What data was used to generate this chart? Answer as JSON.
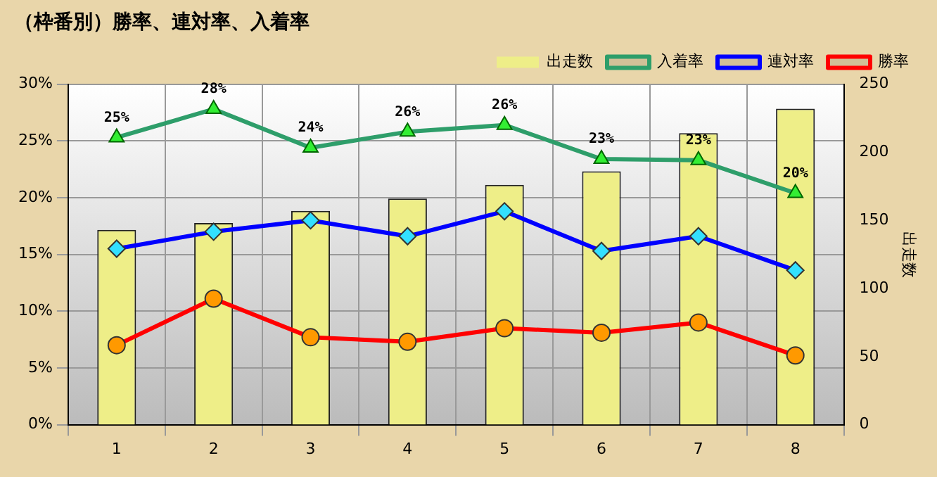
{
  "chart_data": {
    "type": "bar",
    "title": "（枠番別）勝率、連対率、入着率",
    "categories": [
      "1",
      "2",
      "3",
      "4",
      "5",
      "6",
      "7",
      "8"
    ],
    "series": [
      {
        "name": "出走数",
        "axis": "y2",
        "color": "#eeee88",
        "values": [
          143,
          148,
          157,
          166,
          176,
          186,
          214,
          232
        ]
      },
      {
        "name": "入着率",
        "type": "line",
        "marker": "triangle",
        "color": "#2e9e6a",
        "values": [
          25.3,
          27.8,
          24.4,
          25.8,
          26.4,
          23.4,
          23.3,
          20.4
        ],
        "value_labels": [
          "25%",
          "28%",
          "24%",
          "26%",
          "26%",
          "23%",
          "23%",
          "20%"
        ]
      },
      {
        "name": "連対率",
        "type": "line",
        "marker": "diamond",
        "color": "#0000ff",
        "values": [
          15.5,
          17.0,
          18.0,
          16.6,
          18.8,
          15.3,
          16.6,
          13.6
        ]
      },
      {
        "name": "勝率",
        "type": "line",
        "marker": "circle",
        "color": "#ff0000",
        "values": [
          7.0,
          11.1,
          7.7,
          7.3,
          8.5,
          8.1,
          9.0,
          6.1
        ]
      }
    ],
    "ylim": [
      0,
      30
    ],
    "yticks": [
      {
        "value": 0,
        "label": "0%"
      },
      {
        "value": 5,
        "label": "5%"
      },
      {
        "value": 10,
        "label": "10%"
      },
      {
        "value": 15,
        "label": "15%"
      },
      {
        "value": 20,
        "label": "20%"
      },
      {
        "value": 25,
        "label": "25%"
      },
      {
        "value": 30,
        "label": "30%"
      }
    ],
    "y2lim": [
      0,
      250
    ],
    "y2ticks": [
      0,
      50,
      100,
      150,
      200,
      250
    ],
    "y2label": "出走数",
    "grid": true,
    "legend": "top right"
  }
}
